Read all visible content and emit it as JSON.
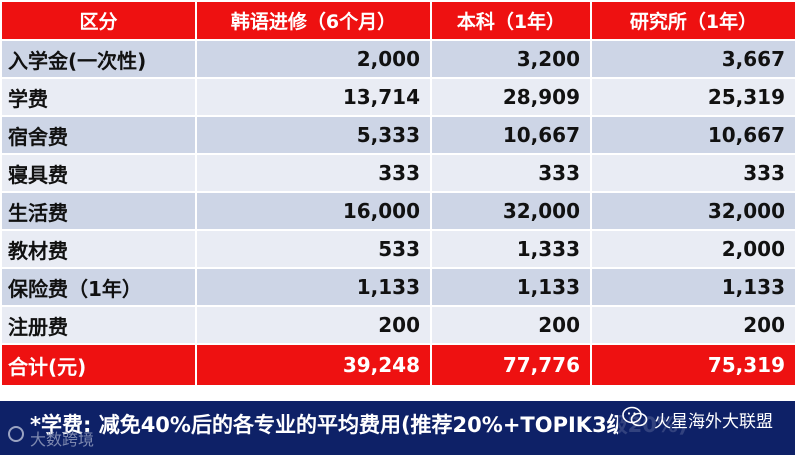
{
  "table": {
    "headers": [
      "区分",
      "韩语进修（6个月）",
      "本科（1年）",
      "研究所（1年）"
    ],
    "rows": [
      {
        "label": "入学金(一次性)",
        "values": [
          "2,000",
          "3,200",
          "3,667"
        ]
      },
      {
        "label": "学费",
        "values": [
          "13,714",
          "28,909",
          "25,319"
        ]
      },
      {
        "label": "宿舍费",
        "values": [
          "5,333",
          "10,667",
          "10,667"
        ]
      },
      {
        "label": "寝具费",
        "values": [
          "333",
          "333",
          "333"
        ]
      },
      {
        "label": "生活费",
        "values": [
          "16,000",
          "32,000",
          "32,000"
        ]
      },
      {
        "label": "教材费",
        "values": [
          "533",
          "1,333",
          "2,000"
        ]
      },
      {
        "label": "保险费（1年）",
        "values": [
          "1,133",
          "1,133",
          "1,133"
        ]
      },
      {
        "label": "注册费",
        "values": [
          "200",
          "200",
          "200"
        ]
      }
    ],
    "total": {
      "label": "合计(元)",
      "values": [
        "39,248",
        "77,776",
        "75,319"
      ]
    }
  },
  "footnote": "*学费: 减免40%后的各专业的平均费用(推荐20%+TOPIK3级20%)",
  "brand": {
    "icon": "wechat-icon",
    "text": "火星海外大联盟"
  },
  "watermark": "大数跨境",
  "colors": {
    "header_red": "#ee1111",
    "row_dark": "#cdd5e6",
    "row_light": "#e9ecf4",
    "footer_navy": "#0e2167"
  }
}
